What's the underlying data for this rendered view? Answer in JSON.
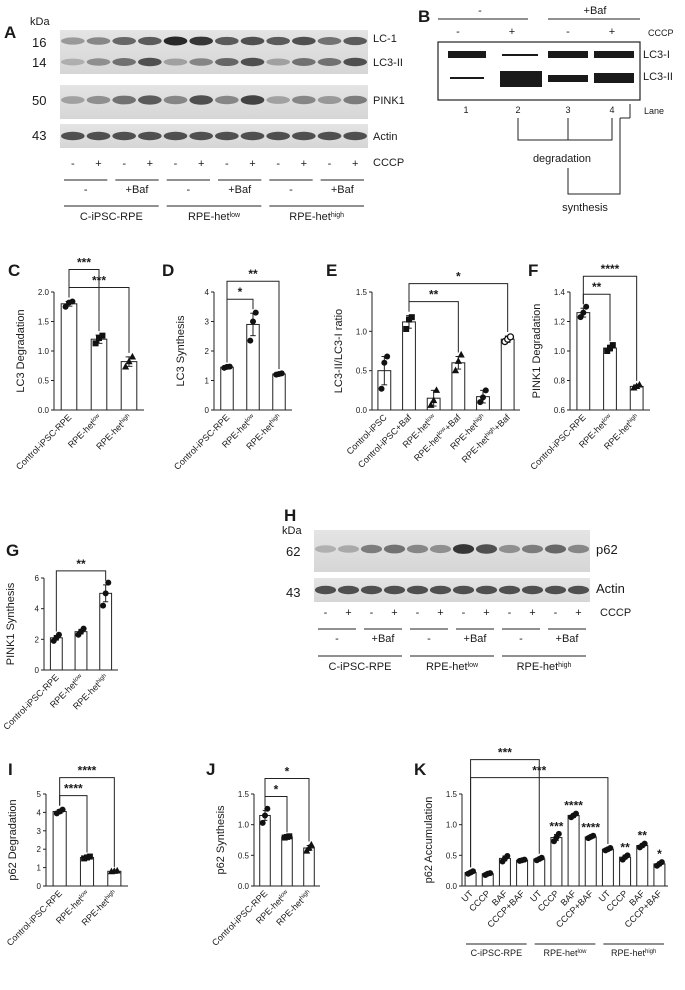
{
  "panels": [
    "A",
    "B",
    "C",
    "D",
    "E",
    "F",
    "G",
    "H",
    "I",
    "J",
    "K"
  ],
  "panelA": {
    "kda": "kDa",
    "mw": [
      "16",
      "14",
      "50",
      "43"
    ],
    "bands": [
      "LC-1",
      "LC3-II",
      "PINK1",
      "Actin"
    ],
    "cccp_signs": [
      "-",
      "+",
      "-",
      "+",
      "-",
      "+",
      "-",
      "+",
      "-",
      "+",
      "-",
      "+"
    ],
    "cccp_label": "CCCP",
    "baf_signs": [
      "-",
      "+Baf",
      "-",
      "+Baf",
      "-",
      "+Baf"
    ],
    "groups": [
      "C-iPSC-RPE",
      "RPE-het",
      "RPE-het"
    ],
    "group_sups": [
      "",
      "low",
      "high"
    ]
  },
  "panelB": {
    "top_minus": "-",
    "top_baf": "+Baf",
    "cccp_signs": [
      "-",
      "+",
      "-",
      "+"
    ],
    "cccp_label": "CCCP",
    "bands": [
      "LC3-I",
      "LC3-II"
    ],
    "lanes": [
      "1",
      "2",
      "3",
      "4"
    ],
    "lane_label": "Lane",
    "degradation": "degradation",
    "synthesis": "synthesis"
  },
  "panelH": {
    "kda": "kDa",
    "mw": [
      "62",
      "43"
    ],
    "bands": [
      "p62",
      "Actin"
    ],
    "cccp_signs": [
      "-",
      "+",
      "-",
      "+",
      "-",
      "+",
      "-",
      "+",
      "-",
      "+",
      "-",
      "+"
    ],
    "cccp_label": "CCCP",
    "baf_signs": [
      "-",
      "+Baf",
      "-",
      "+Baf",
      "-",
      "+Baf"
    ],
    "groups": [
      "C-iPSC-RPE",
      "RPE-het",
      "RPE-het"
    ],
    "group_sups": [
      "",
      "low",
      "high"
    ]
  },
  "chart_data": [
    {
      "id": "C",
      "type": "bar",
      "ylabel": "LC3  Degradation",
      "ylim": [
        0,
        2.0
      ],
      "yticks": [
        0,
        0.5,
        1.0,
        1.5,
        2.0
      ],
      "ytick_labels": [
        "0.0",
        "0.5",
        "1.0",
        "1.5",
        "2.0"
      ],
      "categories": [
        "Control-iPSC-RPE",
        "RPE-het",
        "RPE-het"
      ],
      "cat_sups": [
        "",
        "low",
        "high"
      ],
      "values": [
        1.8,
        1.2,
        0.82
      ],
      "errors": [
        0.04,
        0.07,
        0.08
      ],
      "points": [
        [
          1.75,
          1.82,
          1.84
        ],
        [
          1.13,
          1.22,
          1.26
        ],
        [
          0.73,
          0.82,
          0.9
        ]
      ],
      "markers": [
        "circle",
        "square",
        "triangle"
      ],
      "sig": [
        {
          "a": 0,
          "b": 2,
          "label": "***"
        },
        {
          "a": 0,
          "b": 1,
          "label": "***"
        }
      ]
    },
    {
      "id": "D",
      "type": "bar",
      "ylabel": "LC3 Synthesis",
      "ylim": [
        0,
        4
      ],
      "yticks": [
        0,
        1,
        2,
        3,
        4
      ],
      "ytick_labels": [
        "0",
        "1",
        "2",
        "3",
        "4"
      ],
      "categories": [
        "Control-iPSC-RPE",
        "RPE-het",
        "RPE-het"
      ],
      "cat_sups": [
        "",
        "low",
        "high"
      ],
      "values": [
        1.45,
        2.9,
        1.22
      ],
      "errors": [
        0.03,
        0.38,
        0.03
      ],
      "points": [
        [
          1.43,
          1.46,
          1.47
        ],
        [
          2.35,
          3.0,
          3.3
        ],
        [
          1.2,
          1.22,
          1.24
        ]
      ],
      "markers": [
        "circle",
        "circle",
        "circle"
      ],
      "sig": [
        {
          "a": 0,
          "b": 1,
          "label": "*"
        },
        {
          "a": 0,
          "b": 2,
          "label": "**"
        }
      ]
    },
    {
      "id": "E",
      "type": "bar",
      "ylabel": "LC3-II/LC3-I ratio",
      "ylim": [
        0,
        1.5
      ],
      "yticks": [
        0,
        0.5,
        1.0,
        1.5
      ],
      "ytick_labels": [
        "0.0",
        "0.5",
        "1.0",
        "1.5"
      ],
      "categories": [
        "Control-iPSC",
        "Control-iPSC+Baf",
        "RPE-het",
        "RPE-het",
        "RPE-het",
        "RPE-het"
      ],
      "cat_sups": [
        "",
        "",
        "low",
        "low",
        "high",
        "high"
      ],
      "cat_suffix": [
        "",
        "",
        "",
        "+Baf",
        "",
        "+Baf"
      ],
      "values": [
        0.5,
        1.12,
        0.15,
        0.6,
        0.17,
        0.9
      ],
      "errors": [
        0.18,
        0.08,
        0.1,
        0.08,
        0.08,
        0.04
      ],
      "points": [
        [
          0.27,
          0.6,
          0.68
        ],
        [
          1.03,
          1.15,
          1.18
        ],
        [
          0.06,
          0.12,
          0.25
        ],
        [
          0.5,
          0.62,
          0.7
        ],
        [
          0.1,
          0.16,
          0.25
        ],
        [
          0.87,
          0.9,
          0.93
        ]
      ],
      "markers": [
        "circle",
        "square",
        "triangle",
        "triangle",
        "circle",
        "circle-open"
      ],
      "sig": [
        {
          "a": 1,
          "b": 3,
          "label": "**"
        },
        {
          "a": 1,
          "b": 5,
          "label": "*"
        }
      ]
    },
    {
      "id": "F",
      "type": "bar",
      "ylabel": "PINK1  Degradation",
      "ylim": [
        0.6,
        1.4
      ],
      "yticks": [
        0.6,
        0.8,
        1.0,
        1.2,
        1.4
      ],
      "ytick_labels": [
        "0.6",
        "0.8",
        "1.0",
        "1.2",
        "1.4"
      ],
      "categories": [
        "Control-iPSC-RPE",
        "RPE-het",
        "RPE-het"
      ],
      "cat_sups": [
        "",
        "low",
        "high"
      ],
      "values": [
        1.26,
        1.02,
        0.76
      ],
      "errors": [
        0.03,
        0.02,
        0.01
      ],
      "points": [
        [
          1.23,
          1.26,
          1.3
        ],
        [
          1.0,
          1.02,
          1.04
        ],
        [
          0.75,
          0.76,
          0.77
        ]
      ],
      "markers": [
        "circle",
        "square",
        "triangle"
      ],
      "sig": [
        {
          "a": 0,
          "b": 1,
          "label": "**"
        },
        {
          "a": 0,
          "b": 2,
          "label": "****"
        }
      ]
    },
    {
      "id": "G",
      "type": "bar",
      "ylabel": "PINK1  Synthesis",
      "ylim": [
        0,
        6
      ],
      "yticks": [
        0,
        2,
        4,
        6
      ],
      "ytick_labels": [
        "0",
        "2",
        "4",
        "6"
      ],
      "categories": [
        "Control-iPSC-RPE",
        "RPE-het",
        "RPE-het"
      ],
      "cat_sups": [
        "",
        "low",
        "high"
      ],
      "values": [
        2.1,
        2.5,
        5.0
      ],
      "errors": [
        0.15,
        0.15,
        0.55
      ],
      "points": [
        [
          1.9,
          2.1,
          2.3
        ],
        [
          2.3,
          2.5,
          2.7
        ],
        [
          4.2,
          5.0,
          5.7
        ]
      ],
      "markers": [
        "circle",
        "circle",
        "circle"
      ],
      "sig": [
        {
          "a": 0,
          "b": 2,
          "label": "**"
        }
      ]
    },
    {
      "id": "I",
      "type": "bar",
      "ylabel": "p62 Degradation",
      "ylim": [
        0,
        5
      ],
      "yticks": [
        0,
        1,
        2,
        3,
        4,
        5
      ],
      "ytick_labels": [
        "0",
        "1",
        "2",
        "3",
        "4",
        "5"
      ],
      "categories": [
        "Control-iPSC-RPE",
        "RPE-het",
        "RPE-het"
      ],
      "cat_sups": [
        "",
        "low",
        "high"
      ],
      "values": [
        4.05,
        1.55,
        0.8
      ],
      "errors": [
        0.1,
        0.05,
        0.02
      ],
      "points": [
        [
          3.95,
          4.05,
          4.15
        ],
        [
          1.5,
          1.55,
          1.6
        ],
        [
          0.78,
          0.8,
          0.82
        ]
      ],
      "markers": [
        "circle",
        "square",
        "triangle"
      ],
      "sig": [
        {
          "a": 0,
          "b": 1,
          "label": "****"
        },
        {
          "a": 0,
          "b": 2,
          "label": "****"
        }
      ]
    },
    {
      "id": "J",
      "type": "bar",
      "ylabel": "p62 Synthesis",
      "ylim": [
        0,
        1.5
      ],
      "yticks": [
        0,
        0.5,
        1.0,
        1.5
      ],
      "ytick_labels": [
        "0.0",
        "0.5",
        "1.0",
        "1.5"
      ],
      "categories": [
        "Control-iPSC-RPE",
        "RPE-het",
        "RPE-het"
      ],
      "cat_sups": [
        "",
        "low",
        "high"
      ],
      "values": [
        1.15,
        0.8,
        0.62
      ],
      "errors": [
        0.08,
        0.01,
        0.04
      ],
      "points": [
        [
          1.03,
          1.15,
          1.26
        ],
        [
          0.79,
          0.8,
          0.81
        ],
        [
          0.57,
          0.62,
          0.67
        ]
      ],
      "markers": [
        "circle",
        "square",
        "triangle"
      ],
      "sig": [
        {
          "a": 0,
          "b": 1,
          "label": "*"
        },
        {
          "a": 0,
          "b": 2,
          "label": "*"
        }
      ]
    },
    {
      "id": "K",
      "type": "bar",
      "ylabel": "p62 Accumulation",
      "ylim": [
        0,
        1.5
      ],
      "yticks": [
        0,
        0.5,
        1.0,
        1.5
      ],
      "ytick_labels": [
        "0.0",
        "0.5",
        "1.0",
        "1.5"
      ],
      "categories": [
        "UT",
        "CCCP",
        "BAF",
        "CCCP+BAF",
        "UT",
        "CCCP",
        "BAF",
        "CCCP+BAF",
        "UT",
        "CCCP",
        "BAF",
        "CCCP+BAF"
      ],
      "values": [
        0.22,
        0.2,
        0.45,
        0.42,
        0.44,
        0.79,
        1.15,
        0.8,
        0.6,
        0.47,
        0.66,
        0.36
      ],
      "errors": [
        0.02,
        0.02,
        0.04,
        0.01,
        0.02,
        0.05,
        0.03,
        0.02,
        0.02,
        0.03,
        0.03,
        0.03
      ],
      "points": [
        [
          0.2,
          0.22,
          0.24
        ],
        [
          0.18,
          0.2,
          0.21
        ],
        [
          0.4,
          0.45,
          0.49
        ],
        [
          0.41,
          0.42,
          0.43
        ],
        [
          0.42,
          0.44,
          0.46
        ],
        [
          0.73,
          0.79,
          0.85
        ],
        [
          1.12,
          1.15,
          1.18
        ],
        [
          0.78,
          0.8,
          0.82
        ],
        [
          0.58,
          0.6,
          0.62
        ],
        [
          0.43,
          0.47,
          0.5
        ],
        [
          0.63,
          0.66,
          0.69
        ],
        [
          0.33,
          0.36,
          0.39
        ]
      ],
      "markers": [
        "circle",
        "circle",
        "circle",
        "circle",
        "circle",
        "circle",
        "circle",
        "circle",
        "circle",
        "circle",
        "circle",
        "circle"
      ],
      "bar_stars": [
        "",
        "",
        "",
        "",
        "",
        "***",
        "****",
        "****",
        "",
        "**",
        "**",
        "*"
      ],
      "sig": [
        {
          "a": 0,
          "b": 8,
          "label": "***"
        },
        {
          "a": 0,
          "b": 4,
          "label": "***"
        }
      ],
      "groups": [
        "C-iPSC-RPE",
        "RPE-het",
        "RPE-het"
      ],
      "group_sups": [
        "",
        "low",
        "high"
      ]
    }
  ]
}
